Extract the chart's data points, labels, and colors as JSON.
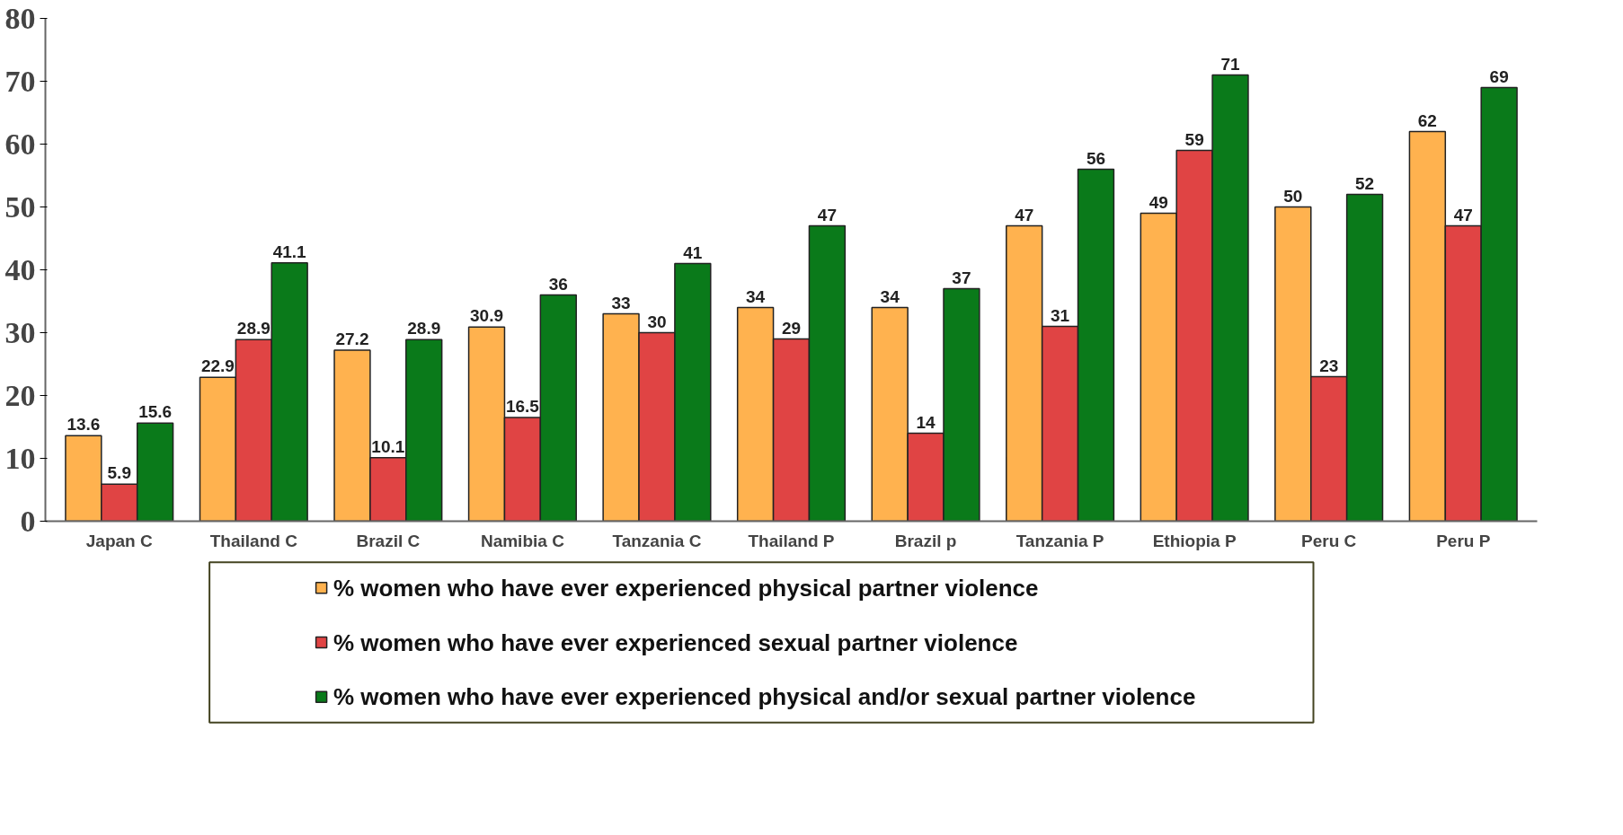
{
  "chart_data": {
    "type": "bar",
    "categories": [
      "Japan C",
      "Thailand C",
      "Brazil C",
      "Namibia C",
      "Tanzania C",
      "Thailand P",
      "Brazil p",
      "Tanzania P",
      "Ethiopia P",
      "Peru C",
      "Peru P"
    ],
    "series": [
      {
        "name": "% women who have ever experienced physical partner violence",
        "color": "#ffb24f",
        "values": [
          13.6,
          22.9,
          27.2,
          30.9,
          33,
          34,
          34,
          47,
          49,
          50,
          62
        ]
      },
      {
        "name": "% women who have ever experienced sexual  partner violence",
        "color": "#e04444",
        "values": [
          5.9,
          28.9,
          10.1,
          16.5,
          30,
          29,
          14,
          31,
          59,
          23,
          47
        ]
      },
      {
        "name": "% women who have ever experienced physical and/or sexual  partner violence",
        "color": "#0a7a1a",
        "values": [
          15.6,
          41.1,
          28.9,
          36,
          41,
          47,
          37,
          56,
          71,
          52,
          69
        ]
      }
    ],
    "ylim": [
      0,
      80
    ],
    "yticks": [
      0,
      10,
      20,
      30,
      40,
      50,
      60,
      70,
      80
    ],
    "data_labels": true,
    "legend": "bottom",
    "grid": false
  }
}
